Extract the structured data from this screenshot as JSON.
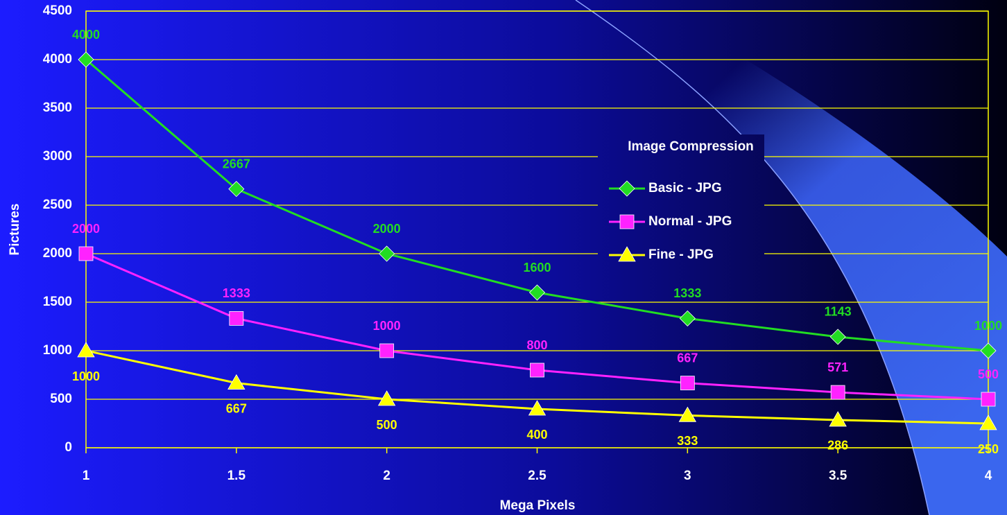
{
  "chart_data": {
    "type": "line",
    "x_label": "Mega Pixels",
    "y_label": "Pictures",
    "legend_title": "Image Compression",
    "x": [
      1,
      1.5,
      2,
      2.5,
      3,
      3.5,
      4
    ],
    "xlim": [
      1,
      4
    ],
    "xticks": [
      1,
      1.5,
      2,
      2.5,
      3,
      3.5,
      4
    ],
    "ylim": [
      0,
      4500
    ],
    "yticks": [
      0,
      500,
      1000,
      1500,
      2000,
      2500,
      3000,
      3500,
      4000,
      4500
    ],
    "grid": true,
    "series": [
      {
        "name": "Basic - JPG",
        "color": "#22dd22",
        "marker": "diamond",
        "label_side": "above",
        "values": [
          4000,
          2667,
          2000,
          1600,
          1333,
          1143,
          1000
        ]
      },
      {
        "name": "Normal - JPG",
        "color": "#ff22ff",
        "marker": "square",
        "label_side": "above",
        "values": [
          2000,
          1333,
          1000,
          800,
          667,
          571,
          500
        ]
      },
      {
        "name": "Fine - JPG",
        "color": "#ffff00",
        "marker": "triangle",
        "label_side": "below",
        "values": [
          1000,
          667,
          500,
          400,
          333,
          286,
          250
        ]
      }
    ]
  }
}
